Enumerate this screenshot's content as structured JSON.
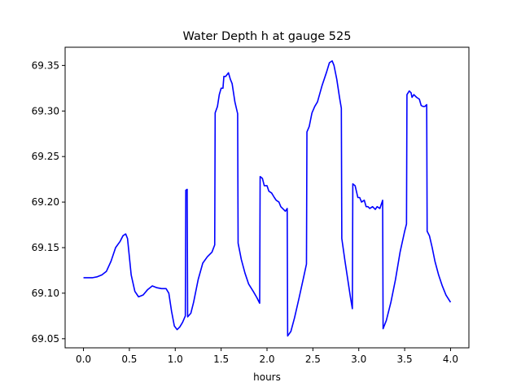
{
  "chart_data": {
    "type": "line",
    "title": "Water Depth h at gauge 525",
    "xlabel": "hours",
    "ylabel": "",
    "xlim": [
      -0.2,
      4.2
    ],
    "ylim": [
      69.04,
      69.37
    ],
    "x_ticks": [
      0.0,
      0.5,
      1.0,
      1.5,
      2.0,
      2.5,
      3.0,
      3.5,
      4.0
    ],
    "x_tick_labels": [
      "0.0",
      "0.5",
      "1.0",
      "1.5",
      "2.0",
      "2.5",
      "3.0",
      "3.5",
      "4.0"
    ],
    "y_ticks": [
      69.05,
      69.1,
      69.15,
      69.2,
      69.25,
      69.3,
      69.35
    ],
    "y_tick_labels": [
      "69.05",
      "69.10",
      "69.15",
      "69.20",
      "69.25",
      "69.30",
      "69.35"
    ],
    "grid": false,
    "series": [
      {
        "color": "#0000ff",
        "points": [
          [
            0.0,
            69.117
          ],
          [
            0.1,
            69.117
          ],
          [
            0.15,
            69.118
          ],
          [
            0.2,
            69.12
          ],
          [
            0.25,
            69.124
          ],
          [
            0.3,
            69.135
          ],
          [
            0.35,
            69.15
          ],
          [
            0.4,
            69.157
          ],
          [
            0.43,
            69.163
          ],
          [
            0.46,
            69.165
          ],
          [
            0.48,
            69.16
          ],
          [
            0.52,
            69.12
          ],
          [
            0.56,
            69.102
          ],
          [
            0.6,
            69.096
          ],
          [
            0.65,
            69.098
          ],
          [
            0.7,
            69.104
          ],
          [
            0.75,
            69.108
          ],
          [
            0.8,
            69.106
          ],
          [
            0.85,
            69.105
          ],
          [
            0.9,
            69.105
          ],
          [
            0.93,
            69.1
          ],
          [
            0.96,
            69.08
          ],
          [
            0.99,
            69.064
          ],
          [
            1.02,
            69.06
          ],
          [
            1.05,
            69.063
          ],
          [
            1.08,
            69.068
          ],
          [
            1.11,
            69.075
          ],
          [
            1.115,
            69.213
          ],
          [
            1.13,
            69.214
          ],
          [
            1.135,
            69.074
          ],
          [
            1.17,
            69.078
          ],
          [
            1.2,
            69.09
          ],
          [
            1.25,
            69.115
          ],
          [
            1.3,
            69.133
          ],
          [
            1.35,
            69.14
          ],
          [
            1.4,
            69.145
          ],
          [
            1.43,
            69.153
          ],
          [
            1.435,
            69.298
          ],
          [
            1.46,
            69.305
          ],
          [
            1.48,
            69.318
          ],
          [
            1.5,
            69.325
          ],
          [
            1.52,
            69.325
          ],
          [
            1.53,
            69.338
          ],
          [
            1.55,
            69.338
          ],
          [
            1.58,
            69.342
          ],
          [
            1.6,
            69.335
          ],
          [
            1.62,
            69.33
          ],
          [
            1.65,
            69.31
          ],
          [
            1.68,
            69.297
          ],
          [
            1.685,
            69.155
          ],
          [
            1.72,
            69.137
          ],
          [
            1.76,
            69.122
          ],
          [
            1.8,
            69.11
          ],
          [
            1.85,
            69.102
          ],
          [
            1.89,
            69.095
          ],
          [
            1.92,
            69.089
          ],
          [
            1.925,
            69.228
          ],
          [
            1.95,
            69.226
          ],
          [
            1.97,
            69.218
          ],
          [
            2.0,
            69.218
          ],
          [
            2.02,
            69.212
          ],
          [
            2.05,
            69.21
          ],
          [
            2.08,
            69.205
          ],
          [
            2.1,
            69.202
          ],
          [
            2.13,
            69.2
          ],
          [
            2.15,
            69.195
          ],
          [
            2.18,
            69.192
          ],
          [
            2.2,
            69.19
          ],
          [
            2.22,
            69.193
          ],
          [
            2.225,
            69.053
          ],
          [
            2.26,
            69.058
          ],
          [
            2.3,
            69.073
          ],
          [
            2.35,
            69.095
          ],
          [
            2.4,
            69.118
          ],
          [
            2.43,
            69.132
          ],
          [
            2.435,
            69.277
          ],
          [
            2.46,
            69.283
          ],
          [
            2.49,
            69.298
          ],
          [
            2.52,
            69.305
          ],
          [
            2.55,
            69.31
          ],
          [
            2.6,
            69.328
          ],
          [
            2.65,
            69.343
          ],
          [
            2.68,
            69.353
          ],
          [
            2.71,
            69.355
          ],
          [
            2.73,
            69.35
          ],
          [
            2.76,
            69.335
          ],
          [
            2.79,
            69.315
          ],
          [
            2.81,
            69.303
          ],
          [
            2.815,
            69.16
          ],
          [
            2.85,
            69.135
          ],
          [
            2.88,
            69.115
          ],
          [
            2.91,
            69.095
          ],
          [
            2.93,
            69.083
          ],
          [
            2.935,
            69.22
          ],
          [
            2.96,
            69.218
          ],
          [
            2.99,
            69.205
          ],
          [
            3.01,
            69.205
          ],
          [
            3.03,
            69.2
          ],
          [
            3.06,
            69.202
          ],
          [
            3.08,
            69.195
          ],
          [
            3.1,
            69.195
          ],
          [
            3.12,
            69.193
          ],
          [
            3.15,
            69.195
          ],
          [
            3.18,
            69.192
          ],
          [
            3.2,
            69.195
          ],
          [
            3.23,
            69.193
          ],
          [
            3.25,
            69.199
          ],
          [
            3.26,
            69.202
          ],
          [
            3.265,
            69.061
          ],
          [
            3.3,
            69.07
          ],
          [
            3.35,
            69.09
          ],
          [
            3.4,
            69.115
          ],
          [
            3.45,
            69.145
          ],
          [
            3.5,
            69.168
          ],
          [
            3.52,
            69.176
          ],
          [
            3.525,
            69.318
          ],
          [
            3.55,
            69.322
          ],
          [
            3.57,
            69.32
          ],
          [
            3.58,
            69.315
          ],
          [
            3.6,
            69.318
          ],
          [
            3.63,
            69.315
          ],
          [
            3.66,
            69.313
          ],
          [
            3.68,
            69.306
          ],
          [
            3.7,
            69.305
          ],
          [
            3.72,
            69.305
          ],
          [
            3.74,
            69.307
          ],
          [
            3.745,
            69.168
          ],
          [
            3.77,
            69.163
          ],
          [
            3.8,
            69.15
          ],
          [
            3.83,
            69.135
          ],
          [
            3.87,
            69.12
          ],
          [
            3.91,
            69.108
          ],
          [
            3.95,
            69.098
          ],
          [
            4.0,
            69.09
          ]
        ]
      }
    ]
  }
}
